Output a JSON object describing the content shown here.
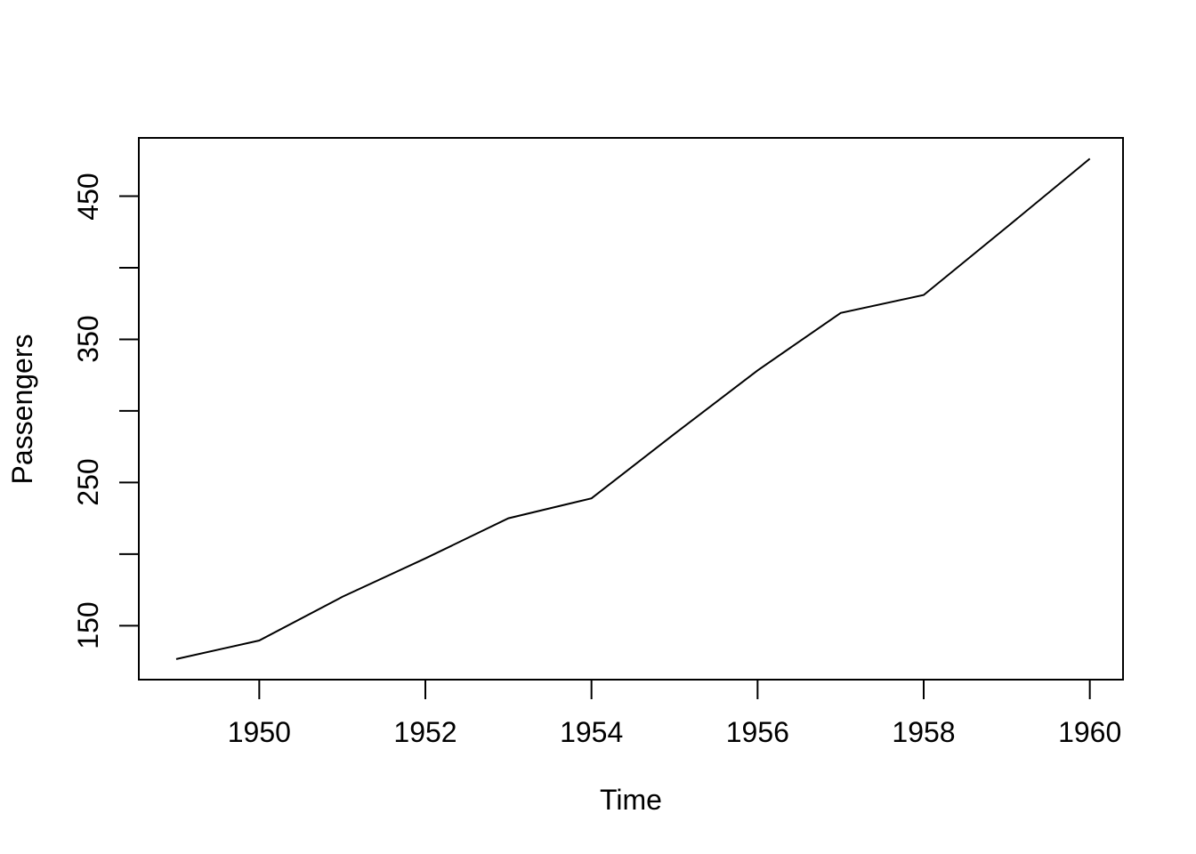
{
  "figure": {
    "background": "#ffffff",
    "foreground": "#000000"
  },
  "chart_data": {
    "type": "line",
    "title": "",
    "xlabel": "Time",
    "ylabel": "Passengers",
    "x": [
      1949,
      1950,
      1951,
      1952,
      1953,
      1954,
      1955,
      1956,
      1957,
      1958,
      1959,
      1960
    ],
    "values": [
      126.67,
      139.67,
      170.17,
      197.0,
      225.0,
      238.92,
      284.0,
      328.25,
      368.42,
      381.0,
      428.33,
      476.17
    ],
    "xlim": [
      1948.55,
      1960.4
    ],
    "ylim": [
      112.3,
      490.7
    ],
    "x_ticks": [
      {
        "value": 1950,
        "label": "1950"
      },
      {
        "value": 1952,
        "label": "1952"
      },
      {
        "value": 1954,
        "label": "1954"
      },
      {
        "value": 1956,
        "label": "1956"
      },
      {
        "value": 1958,
        "label": "1958"
      },
      {
        "value": 1960,
        "label": "1960"
      }
    ],
    "y_ticks": [
      {
        "value": 150,
        "label": "150"
      },
      {
        "value": 200,
        "label": ""
      },
      {
        "value": 250,
        "label": "250"
      },
      {
        "value": 300,
        "label": ""
      },
      {
        "value": 350,
        "label": "350"
      },
      {
        "value": 400,
        "label": ""
      },
      {
        "value": 450,
        "label": "450"
      }
    ],
    "grid": false,
    "legend": "none",
    "line_color": "#000000",
    "line_width": 2,
    "axis_color": "#000000"
  }
}
